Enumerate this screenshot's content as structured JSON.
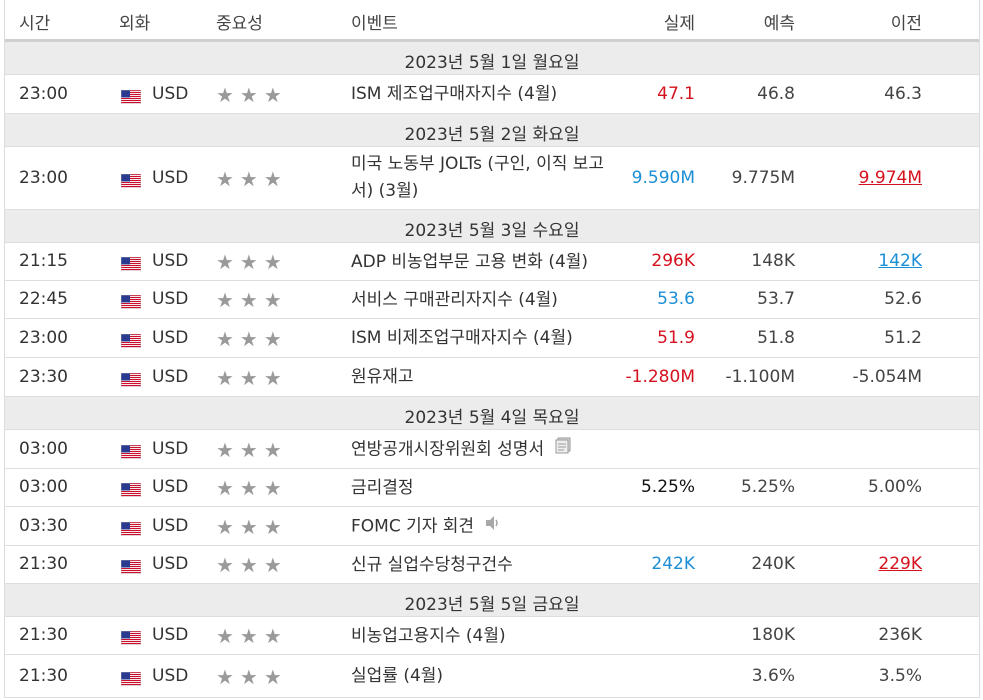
{
  "header": {
    "time": "시간",
    "currency": "외화",
    "importance": "중요성",
    "event": "이벤트",
    "actual": "실제",
    "forecast": "예측",
    "previous": "이전"
  },
  "colors": {
    "red": "#d4121e",
    "blue": "#1b8ed6",
    "star": "#9a9a9a",
    "date_bg": "#ececec"
  },
  "rows": [
    {
      "type": "date",
      "label": "2023년 5월 1일 월요일"
    },
    {
      "type": "event",
      "time": "23:00",
      "currency": "USD",
      "stars": "★★★",
      "event": "ISM 제조업구매자지수 (4월)",
      "actual": "47.1",
      "actual_color": "red",
      "forecast": "46.8",
      "previous": "46.3"
    },
    {
      "type": "date",
      "label": "2023년 5월 2일 화요일"
    },
    {
      "type": "event",
      "time": "23:00",
      "currency": "USD",
      "stars": "★★★",
      "event": "미국 노동부 JOLTs (구인, 이직 보고서) (3월)",
      "actual": "9.590M",
      "actual_color": "blue",
      "forecast": "9.775M",
      "previous": "9.974M",
      "previous_style": "ulred"
    },
    {
      "type": "date",
      "label": "2023년 5월 3일 수요일"
    },
    {
      "type": "event",
      "time": "21:15",
      "currency": "USD",
      "stars": "★★★",
      "event": "ADP 비농업부문 고용 변화 (4월)",
      "actual": "296K",
      "actual_color": "red",
      "forecast": "148K",
      "previous": "142K",
      "previous_style": "ulblue"
    },
    {
      "type": "event",
      "time": "22:45",
      "currency": "USD",
      "stars": "★★★",
      "event": "서비스 구매관리자지수 (4월)",
      "actual": "53.6",
      "actual_color": "blue",
      "forecast": "53.7",
      "previous": "52.6"
    },
    {
      "type": "event",
      "time": "23:00",
      "currency": "USD",
      "stars": "★★★",
      "event": "ISM 비제조업구매자지수 (4월)",
      "actual": "51.9",
      "actual_color": "red",
      "forecast": "51.8",
      "previous": "51.2"
    },
    {
      "type": "event",
      "time": "23:30",
      "currency": "USD",
      "stars": "★★★",
      "event": "원유재고",
      "actual": "-1.280M",
      "actual_color": "red",
      "forecast": "-1.100M",
      "previous": "-5.054M"
    },
    {
      "type": "date",
      "label": "2023년 5월 4일 목요일"
    },
    {
      "type": "event",
      "time": "03:00",
      "currency": "USD",
      "stars": "★★★",
      "event": "연방공개시장위원회 성명서",
      "icon": "document-icon",
      "actual": "",
      "forecast": "",
      "previous": ""
    },
    {
      "type": "event",
      "time": "03:00",
      "currency": "USD",
      "stars": "★★★",
      "event": "금리결정",
      "actual": "5.25%",
      "actual_color": "black",
      "forecast": "5.25%",
      "previous": "5.00%"
    },
    {
      "type": "event",
      "time": "03:30",
      "currency": "USD",
      "stars": "★★★",
      "event": "FOMC 기자 회견",
      "icon": "speaker-icon",
      "actual": "",
      "forecast": "",
      "previous": ""
    },
    {
      "type": "event",
      "time": "21:30",
      "currency": "USD",
      "stars": "★★★",
      "event": "신규 실업수당청구건수",
      "actual": "242K",
      "actual_color": "blue",
      "forecast": "240K",
      "previous": "229K",
      "previous_style": "ulred"
    },
    {
      "type": "date",
      "label": "2023년 5월 5일 금요일"
    },
    {
      "type": "event",
      "time": "21:30",
      "currency": "USD",
      "stars": "★★★",
      "event": "비농업고용지수 (4월)",
      "actual": "",
      "forecast": "180K",
      "previous": "236K"
    },
    {
      "type": "event",
      "time": "21:30",
      "currency": "USD",
      "stars": "★★★",
      "event": "실업률 (4월)",
      "actual": "",
      "forecast": "3.6%",
      "previous": "3.5%"
    }
  ]
}
